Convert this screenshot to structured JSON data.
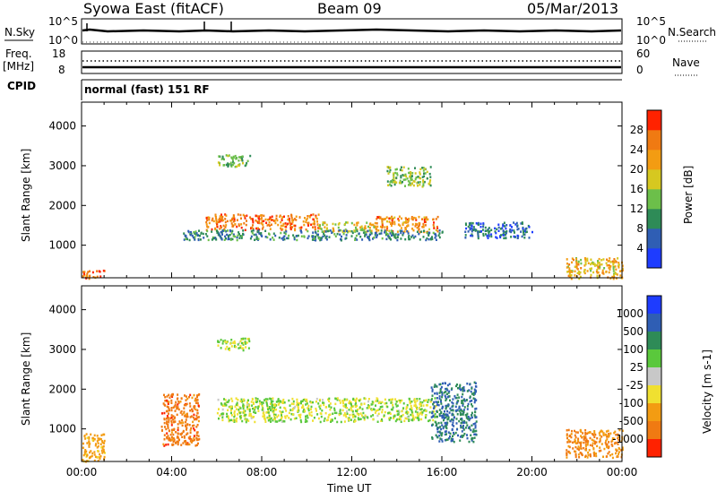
{
  "header": {
    "station": "Syowa East (fitACF)",
    "beam": "Beam 09",
    "date": "05/Mar/2013"
  },
  "top_panels": {
    "nsky_label": "N.Sky",
    "nsky_ticks": [
      "10^5",
      "10^0"
    ],
    "nsearch_label": "N.Search",
    "nsearch_ticks": [
      "10^5",
      "10^0"
    ],
    "freq_label_line1": "Freq.",
    "freq_label_line2": "[MHz]",
    "freq_ticks": [
      "18",
      "8"
    ],
    "nave_label": "Nave",
    "nave_ticks": [
      "60",
      "0"
    ],
    "cpid_label": "CPID",
    "cpid_value": "normal (fast) 151 RF"
  },
  "chart_data": [
    {
      "type": "heatmap",
      "panel": "power",
      "ylabel": "Slant Range [km]",
      "xlabel": "",
      "yticks": [
        1000,
        2000,
        3000,
        4000
      ],
      "ylim": [
        180,
        4600
      ],
      "colorbar_label": "Power [dB]",
      "colorbar_ticks": [
        4,
        8,
        12,
        16,
        20,
        24,
        28
      ],
      "colorbar_colors": [
        "#1e3cff",
        "#2f5eb4",
        "#2e8b57",
        "#6cbf4a",
        "#d6c820",
        "#f39c12",
        "#f07a12",
        "#ff2200"
      ],
      "colorbar_range": [
        0,
        32
      ],
      "regions": [
        {
          "t_start": 5.5,
          "t_end": 10.5,
          "r_low": 1400,
          "r_high": 1800,
          "value": 26
        },
        {
          "t_start": 10.5,
          "t_end": 13.0,
          "r_low": 1350,
          "r_high": 1600,
          "value": 18
        },
        {
          "t_start": 13.0,
          "t_end": 15.8,
          "r_low": 1350,
          "r_high": 1750,
          "value": 24
        },
        {
          "t_start": 4.5,
          "t_end": 16.0,
          "r_low": 1150,
          "r_high": 1400,
          "value": 9
        },
        {
          "t_start": 6.0,
          "t_end": 7.5,
          "r_low": 3000,
          "r_high": 3300,
          "value": 13
        },
        {
          "t_start": 13.5,
          "t_end": 15.5,
          "r_low": 2500,
          "r_high": 3000,
          "value": 15
        },
        {
          "t_start": 0.0,
          "t_end": 1.0,
          "r_low": 180,
          "r_high": 400,
          "value": 26
        },
        {
          "t_start": 21.5,
          "t_end": 24.0,
          "r_low": 180,
          "r_high": 700,
          "value": 20
        },
        {
          "t_start": 17.0,
          "t_end": 20.0,
          "r_low": 1200,
          "r_high": 1600,
          "value": 7
        }
      ]
    },
    {
      "type": "heatmap",
      "panel": "velocity",
      "ylabel": "Slant Range [km]",
      "xlabel": "Time UT",
      "xticks": [
        "00:00",
        "04:00",
        "08:00",
        "12:00",
        "16:00",
        "20:00",
        "00:00"
      ],
      "xlim": [
        0,
        24
      ],
      "yticks": [
        1000,
        2000,
        3000,
        4000
      ],
      "ylim": [
        180,
        4600
      ],
      "colorbar_label": "Velocity [m s-1]",
      "colorbar_ticks": [
        "1000",
        "500",
        "100",
        "25",
        "-25",
        "-100",
        "-500",
        "-1000"
      ],
      "colorbar_colors": [
        "#1e3cff",
        "#2f5eb4",
        "#2e8b57",
        "#5ac83c",
        "#c8c8c8",
        "#f0e030",
        "#f39c12",
        "#f07a12",
        "#ff2200"
      ],
      "regions": [
        {
          "t_start": 6.0,
          "t_end": 15.8,
          "r_low": 1200,
          "r_high": 1800,
          "value": 0
        },
        {
          "t_start": 3.5,
          "t_end": 5.2,
          "r_low": 600,
          "r_high": 1900,
          "value": -500
        },
        {
          "t_start": 0.0,
          "t_end": 1.0,
          "r_low": 180,
          "r_high": 900,
          "value": -100
        },
        {
          "t_start": 15.5,
          "t_end": 17.5,
          "r_low": 700,
          "r_high": 2200,
          "value": 300
        },
        {
          "t_start": 21.5,
          "t_end": 24.0,
          "r_low": 300,
          "r_high": 1000,
          "value": -300
        },
        {
          "t_start": 6.0,
          "t_end": 7.5,
          "r_low": 3000,
          "r_high": 3300,
          "value": 0
        }
      ]
    }
  ]
}
